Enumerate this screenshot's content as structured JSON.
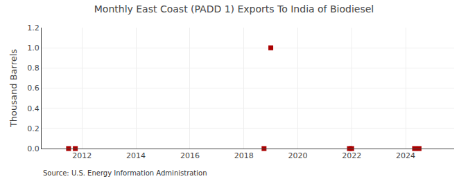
{
  "chart_data": {
    "type": "scatter",
    "title": "Monthly East Coast (PADD 1) Exports To India of Biodiesel",
    "ylabel": "Thousand Barrels",
    "annotations": [
      "Source: U.S. Energy Information Administration"
    ],
    "x": [
      2011.5,
      2011.75,
      2018.75,
      2019.0,
      2021.917,
      2022.0,
      2024.333,
      2024.5
    ],
    "values": [
      0.0,
      0.0,
      0.0,
      1.0,
      0.0,
      0.0,
      0.0,
      0.0
    ],
    "color": "#aa0000",
    "marker": "square",
    "xlim": [
      2010.5,
      2025.8
    ],
    "xticks": [
      2012,
      2014,
      2016,
      2018,
      2020,
      2022,
      2024
    ],
    "ylim": [
      0,
      1.2
    ],
    "yticks": [
      {
        "value": 0,
        "label": "0.0"
      },
      0.2,
      0.4,
      0.6,
      0.8,
      {
        "value": 1,
        "label": "1.0"
      },
      1.2
    ],
    "grid": true
  }
}
